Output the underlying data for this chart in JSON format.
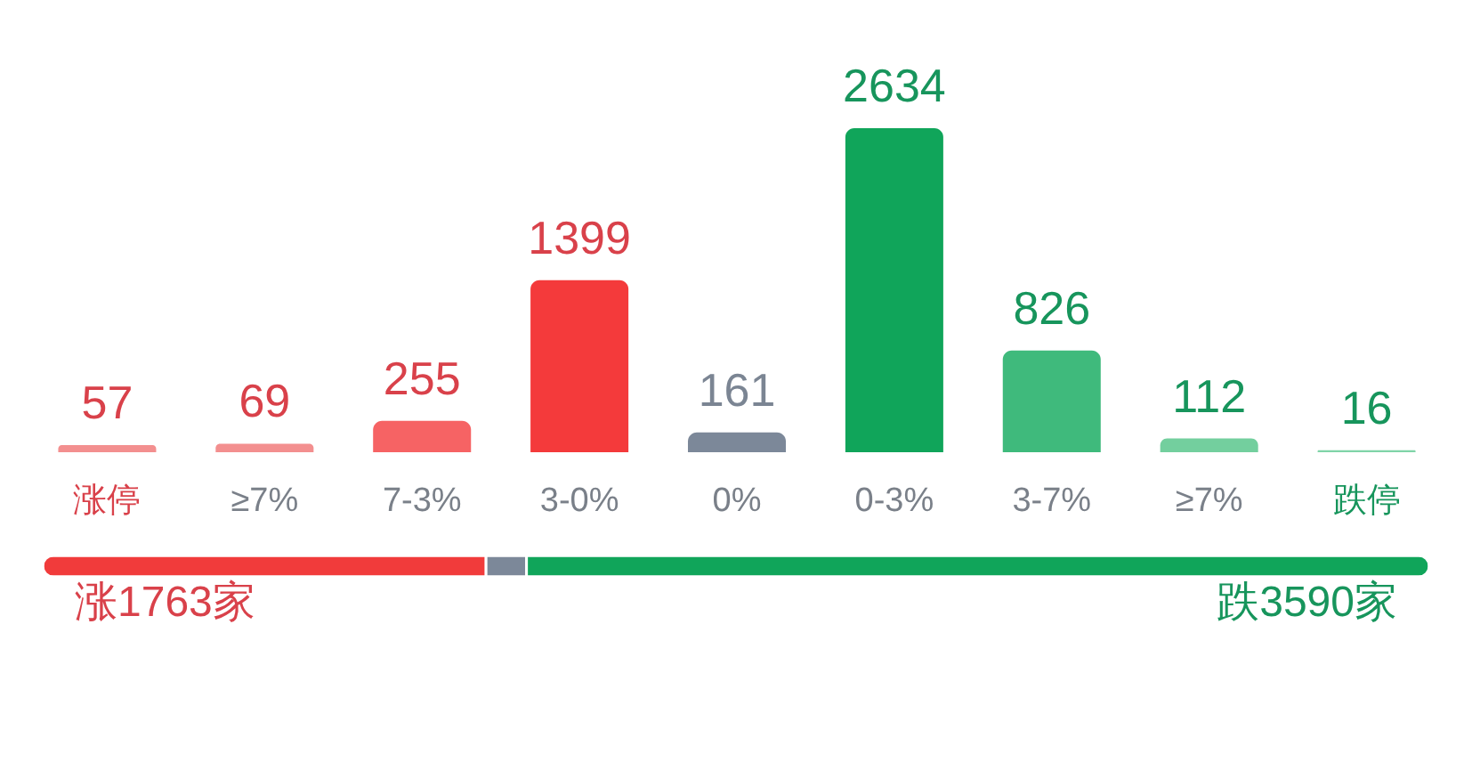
{
  "chart_data": [
    {
      "type": "bar",
      "categories": [
        "涨停",
        "≥7%",
        "7-3%",
        "3-0%",
        "0%",
        "0-3%",
        "3-7%",
        "≥7%",
        "跌停"
      ],
      "values": [
        57,
        69,
        255,
        1399,
        161,
        2634,
        826,
        112,
        16
      ],
      "colors": [
        "#f38f8f",
        "#f38f8f",
        "#f66364",
        "#f43a3b",
        "#7c8899",
        "#10a55a",
        "#3fba7c",
        "#73cf9e",
        "#80d4a8"
      ],
      "data_labels": true,
      "tick_labels": "x"
    },
    {
      "type": "bar",
      "orientation": "horizontal",
      "stacked": true,
      "categories": [
        null
      ],
      "series": [
        {
          "color": "#f13b3b",
          "values": [
            1763
          ],
          "value_labels": [
            "涨1763家"
          ]
        },
        {
          "color": "#7c8899",
          "values": [
            161
          ],
          "value_labels": [
            null
          ]
        },
        {
          "color": "#10a55a",
          "values": [
            3590
          ],
          "value_labels": [
            "跌3590家"
          ]
        }
      ],
      "tick_labels": false
    }
  ]
}
